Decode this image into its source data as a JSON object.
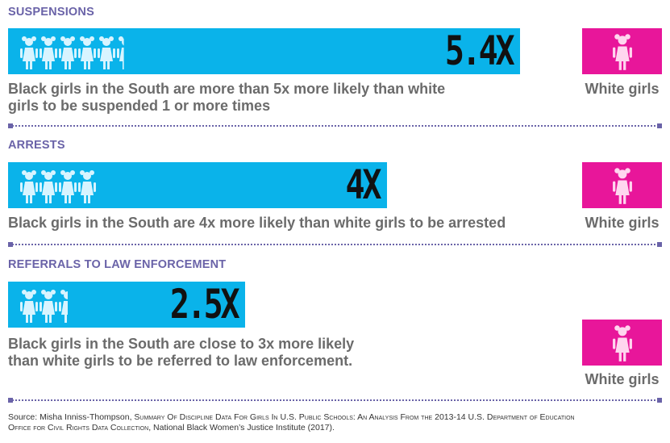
{
  "chart_data": [
    {
      "type": "bar",
      "title": "SUSPENSIONS",
      "value": 5.4,
      "value_label": "5.4X",
      "description": [
        "Black girls in the South are more than 5x more likely than white",
        "girls to be suspended 1 or more times"
      ],
      "comparison_label": "White girls",
      "comparison_value": 1
    },
    {
      "type": "bar",
      "title": "ARRESTS",
      "value": 4,
      "value_label": "4X",
      "description": [
        "Black girls in the South are 4x more likely than white girls to be arrested"
      ],
      "comparison_label": "White girls",
      "comparison_value": 1
    },
    {
      "type": "bar",
      "title": "REFERRALS TO LAW ENFORCEMENT",
      "value": 2.5,
      "value_label": "2.5X",
      "description": [
        "Black girls in the South are close to 3x more likely",
        "than white girls to be referred to law enforcement."
      ],
      "comparison_label": "White girls",
      "comparison_value": 1
    }
  ],
  "colors": {
    "bar": "#0ab3ea",
    "comparison": "#e8169a",
    "figure_light": "#d8f4ff",
    "title": "#6a63a8"
  },
  "icon": "girl-figure-icon",
  "source": {
    "prefix": "Source: Misha Inniss-Thompson, ",
    "title_line1": "Summary Of Discipline Data For Girls In U.S. Public Schools: An Analysis From the 2013-14 U.S. Department of Education",
    "title_line2": "Office for Civil Rights Data Collection",
    "suffix": ", National Black Women’s Justice Institute (2017)."
  }
}
